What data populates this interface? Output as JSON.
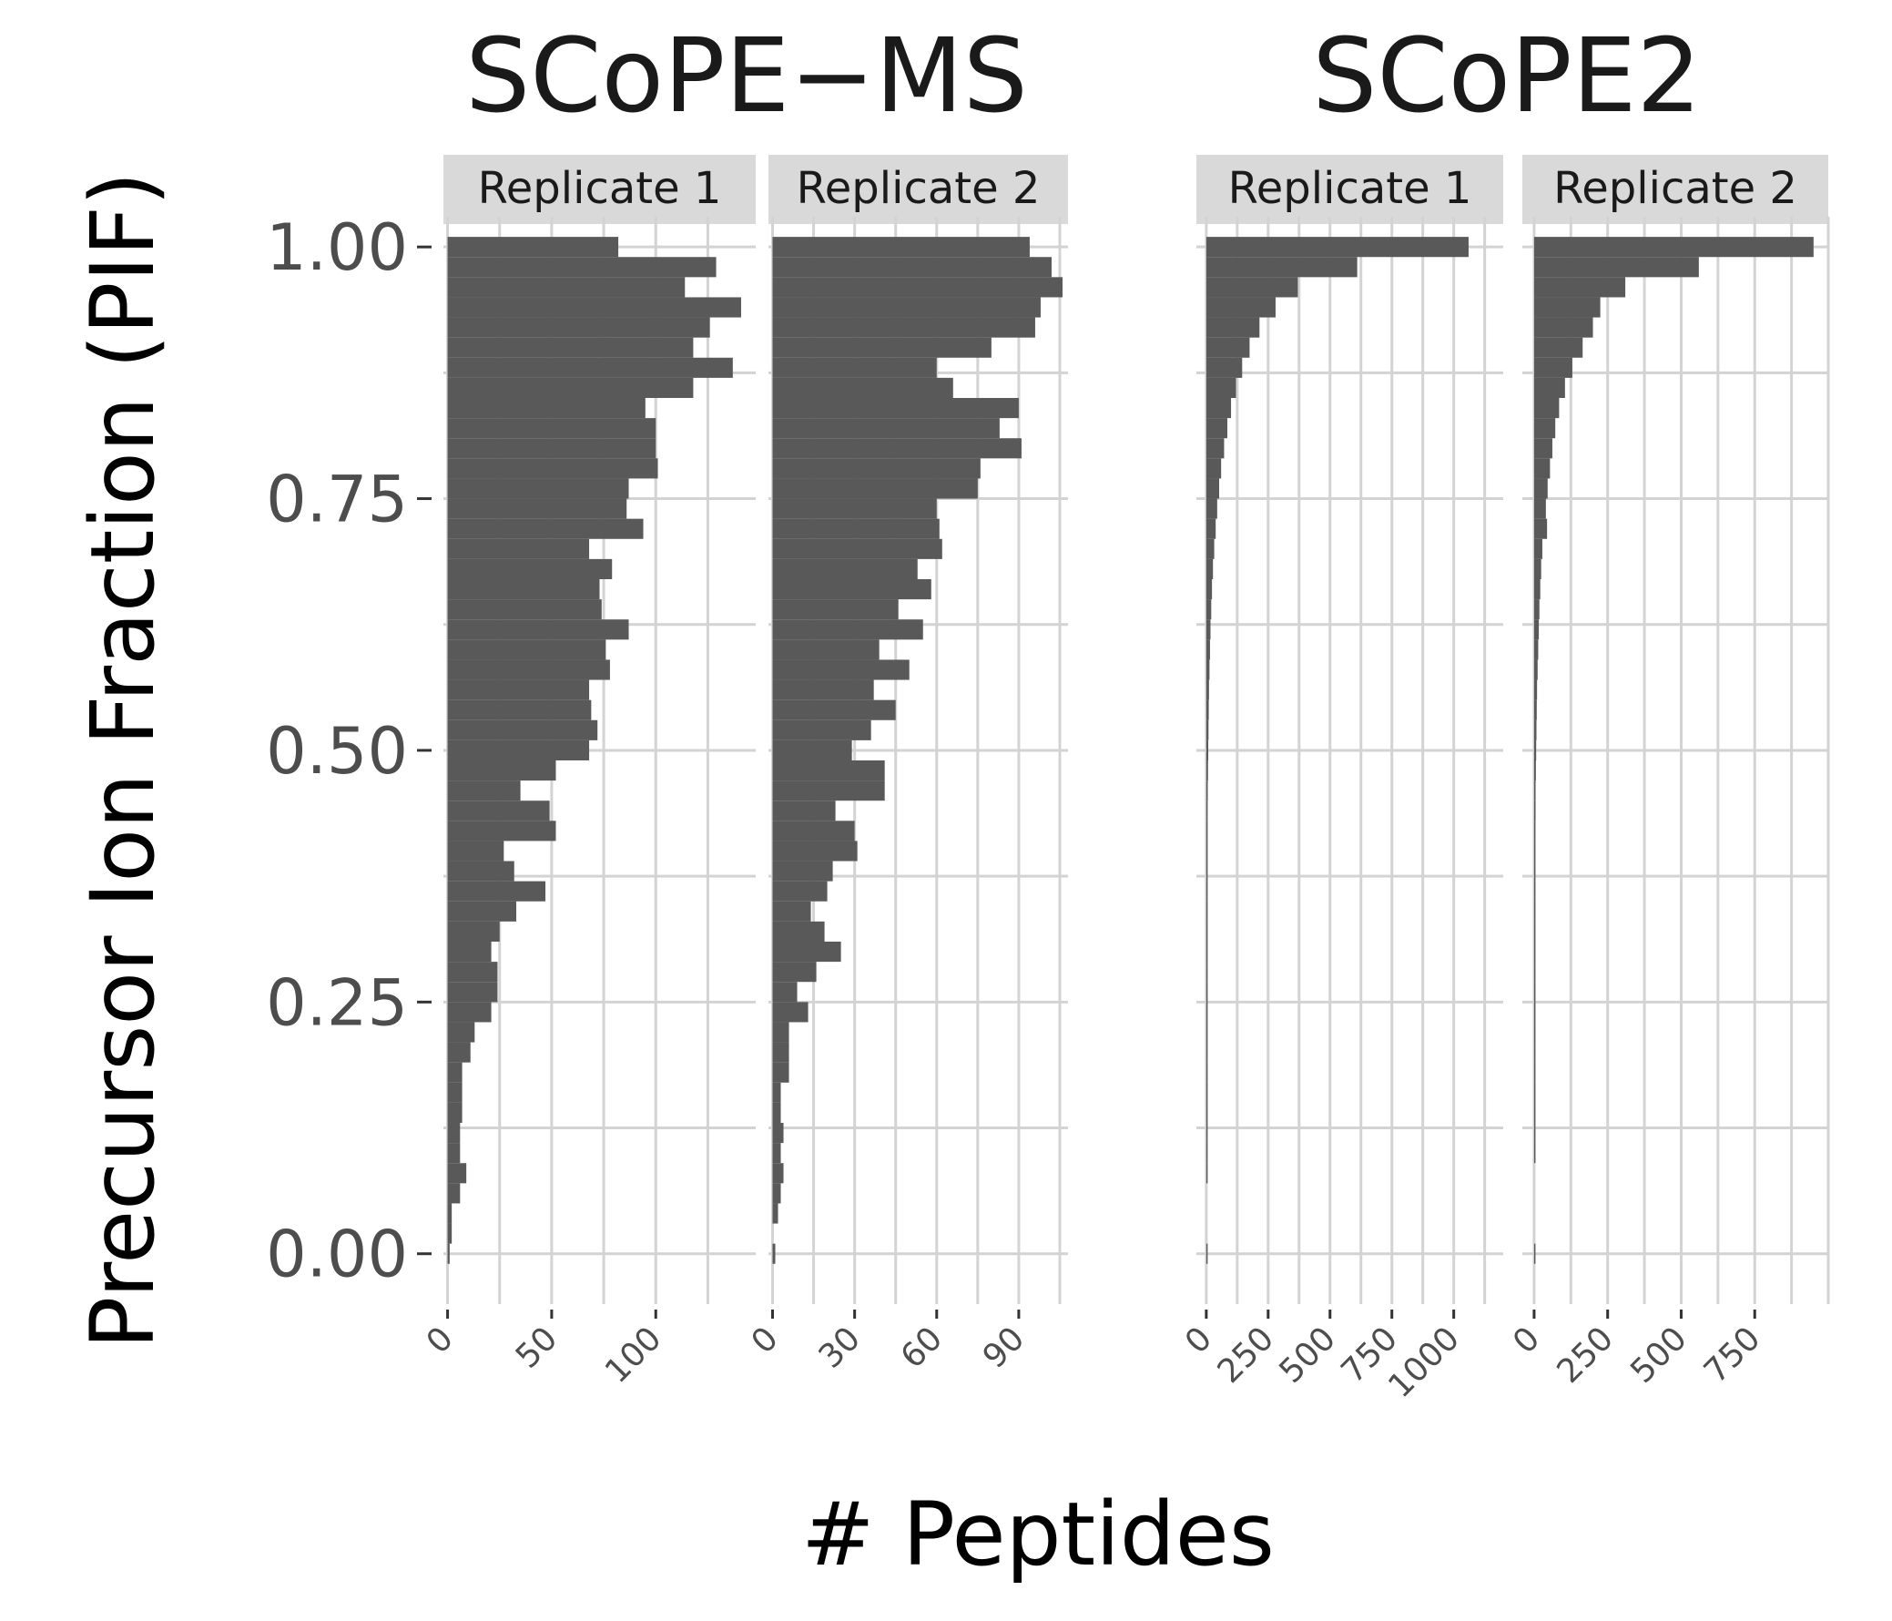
{
  "figure": {
    "xlabel": "#  Peptides",
    "ylabel": "Precursor Ion Fraction (PIF)",
    "groups": [
      "SCoPE−MS",
      "SCoPE2"
    ],
    "colors": {
      "bar": "#595959",
      "grid": "#d3d3d3",
      "strip": "#d9d9d9",
      "tick_text": "#4d4d4d"
    }
  },
  "chart_data": {
    "type": "bar",
    "orientation": "horizontal",
    "xlabel": "#  Peptides",
    "ylabel": "Precursor Ion Fraction (PIF)",
    "ylim": [
      -0.05,
      1.03
    ],
    "yticks": [
      0.0,
      0.25,
      0.5,
      0.75,
      1.0
    ],
    "ytick_labels": [
      "0.00",
      "0.25",
      "0.50",
      "0.75",
      "1.00"
    ],
    "bin_centers": [
      1.0,
      0.98,
      0.96,
      0.94,
      0.92,
      0.9,
      0.88,
      0.86,
      0.84,
      0.82,
      0.8,
      0.78,
      0.76,
      0.74,
      0.72,
      0.7,
      0.68,
      0.66,
      0.64,
      0.62,
      0.6,
      0.58,
      0.56,
      0.54,
      0.52,
      0.5,
      0.48,
      0.46,
      0.44,
      0.42,
      0.4,
      0.38,
      0.36,
      0.34,
      0.32,
      0.3,
      0.28,
      0.26,
      0.24,
      0.22,
      0.2,
      0.18,
      0.16,
      0.14,
      0.12,
      0.1,
      0.08,
      0.06,
      0.04,
      0.02,
      0.0
    ],
    "bin_width": 0.02,
    "grid": true,
    "panels": [
      {
        "group": "SCoPE−MS",
        "strip": "Replicate 1",
        "xlim": [
          -2,
          148
        ],
        "xticks": [
          0,
          50,
          100
        ],
        "xtick_labels": [
          "0",
          "50",
          "100"
        ],
        "values": [
          82,
          129,
          114,
          141,
          126,
          118,
          137,
          118,
          95,
          100,
          100,
          101,
          87,
          86,
          94,
          68,
          79,
          73,
          74,
          87,
          76,
          78,
          68,
          69,
          72,
          68,
          52,
          35,
          49,
          52,
          27,
          32,
          47,
          33,
          25,
          21,
          24,
          24,
          21,
          13,
          11,
          7,
          7,
          7,
          6,
          6,
          9,
          6,
          2,
          2,
          1
        ]
      },
      {
        "group": "SCoPE−MS",
        "strip": "Replicate 2",
        "xlim": [
          -1.5,
          108
        ],
        "xticks": [
          0,
          30,
          60,
          90
        ],
        "xtick_labels": [
          "0",
          "30",
          "60",
          "90"
        ],
        "values": [
          94,
          102,
          106,
          98,
          96,
          80,
          60,
          66,
          90,
          83,
          91,
          76,
          75,
          60,
          61,
          62,
          53,
          58,
          46,
          55,
          39,
          50,
          37,
          45,
          36,
          29,
          41,
          41,
          23,
          30,
          31,
          22,
          20,
          14,
          19,
          25,
          16,
          9,
          13,
          6,
          6,
          6,
          3,
          3,
          4,
          3,
          4,
          3,
          2,
          0,
          1
        ]
      },
      {
        "group": "SCoPE2",
        "strip": "Replicate 1",
        "xlim": [
          -40,
          1200
        ],
        "xticks": [
          0,
          250,
          500,
          750,
          1000
        ],
        "xtick_labels": [
          "0",
          "250",
          "500",
          "750",
          "1000"
        ],
        "values": [
          1060,
          610,
          370,
          280,
          215,
          175,
          145,
          120,
          100,
          85,
          72,
          60,
          52,
          44,
          38,
          32,
          27,
          23,
          20,
          17,
          15,
          13,
          11,
          10,
          9,
          8,
          7,
          6,
          5,
          5,
          4,
          4,
          3,
          3,
          3,
          2,
          2,
          2,
          2,
          1,
          1,
          1,
          1,
          1,
          1,
          1,
          1,
          0,
          0,
          0,
          1
        ]
      },
      {
        "group": "SCoPE2",
        "strip": "Replicate 2",
        "xlim": [
          -40,
          1000
        ],
        "xticks": [
          0,
          250,
          500,
          750
        ],
        "xtick_labels": [
          "0",
          "250",
          "500",
          "750"
        ],
        "values": [
          950,
          560,
          310,
          225,
          200,
          165,
          130,
          105,
          85,
          72,
          62,
          54,
          46,
          40,
          44,
          28,
          24,
          21,
          18,
          16,
          14,
          12,
          10,
          9,
          8,
          7,
          6,
          5,
          5,
          4,
          4,
          3,
          3,
          3,
          2,
          2,
          2,
          2,
          1,
          1,
          1,
          1,
          1,
          1,
          1,
          1,
          0,
          0,
          0,
          0,
          1
        ]
      }
    ]
  }
}
